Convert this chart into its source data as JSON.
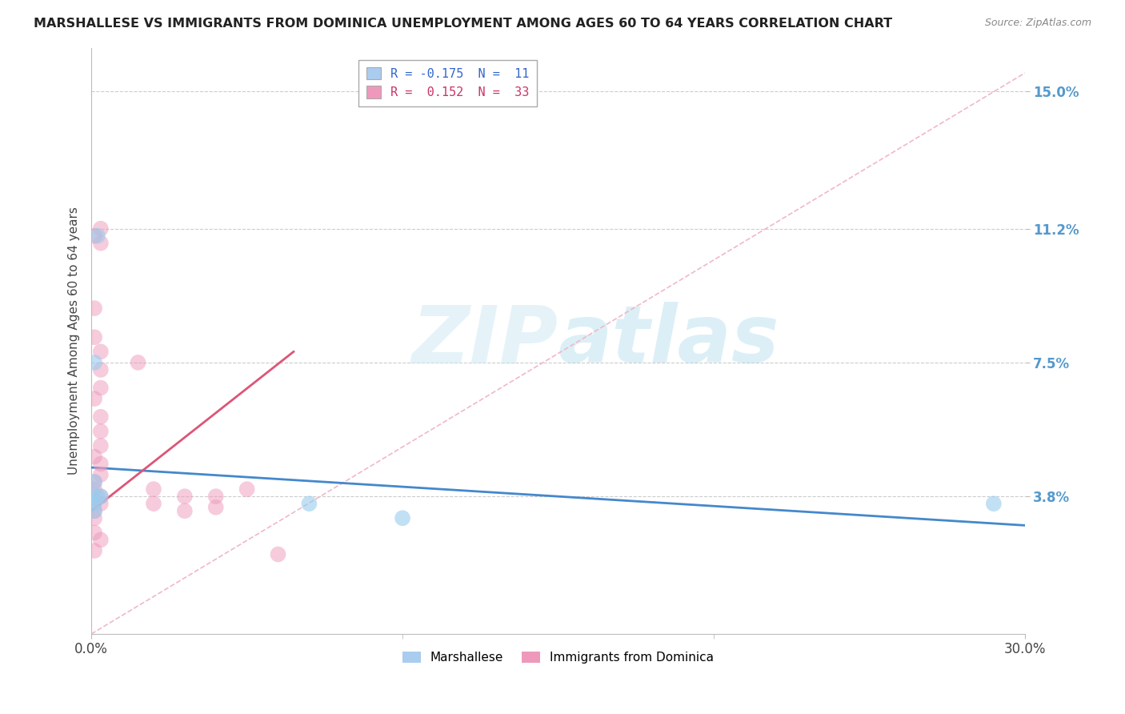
{
  "title": "MARSHALLESE VS IMMIGRANTS FROM DOMINICA UNEMPLOYMENT AMONG AGES 60 TO 64 YEARS CORRELATION CHART",
  "source": "Source: ZipAtlas.com",
  "ylabel": "Unemployment Among Ages 60 to 64 years",
  "ytick_labels": [
    "3.8%",
    "7.5%",
    "11.2%",
    "15.0%"
  ],
  "ytick_values": [
    0.038,
    0.075,
    0.112,
    0.15
  ],
  "xmin": 0.0,
  "xmax": 0.3,
  "ymin": 0.0,
  "ymax": 0.162,
  "marshallese_color": "#99ccee",
  "dominica_color": "#ee99bb",
  "trendline_marshallese_color": "#4488cc",
  "trendline_dominica_color": "#dd5577",
  "dashed_line_color": "#f0b8c8",
  "marshallese_points": [
    [
      0.0,
      0.038
    ],
    [
      0.001,
      0.042
    ],
    [
      0.001,
      0.036
    ],
    [
      0.001,
      0.034
    ],
    [
      0.002,
      0.038
    ],
    [
      0.002,
      0.11
    ],
    [
      0.07,
      0.036
    ],
    [
      0.1,
      0.032
    ],
    [
      0.29,
      0.036
    ],
    [
      0.001,
      0.075
    ],
    [
      0.003,
      0.038
    ]
  ],
  "dominica_points": [
    [
      0.001,
      0.11
    ],
    [
      0.003,
      0.112
    ],
    [
      0.003,
      0.108
    ],
    [
      0.001,
      0.09
    ],
    [
      0.001,
      0.082
    ],
    [
      0.003,
      0.078
    ],
    [
      0.003,
      0.073
    ],
    [
      0.003,
      0.068
    ],
    [
      0.001,
      0.065
    ],
    [
      0.003,
      0.06
    ],
    [
      0.003,
      0.056
    ],
    [
      0.003,
      0.052
    ],
    [
      0.001,
      0.049
    ],
    [
      0.003,
      0.047
    ],
    [
      0.003,
      0.044
    ],
    [
      0.001,
      0.042
    ],
    [
      0.001,
      0.04
    ],
    [
      0.003,
      0.038
    ],
    [
      0.003,
      0.036
    ],
    [
      0.001,
      0.034
    ],
    [
      0.001,
      0.032
    ],
    [
      0.001,
      0.028
    ],
    [
      0.003,
      0.026
    ],
    [
      0.001,
      0.023
    ],
    [
      0.015,
      0.075
    ],
    [
      0.02,
      0.04
    ],
    [
      0.02,
      0.036
    ],
    [
      0.03,
      0.038
    ],
    [
      0.03,
      0.034
    ],
    [
      0.04,
      0.038
    ],
    [
      0.04,
      0.035
    ],
    [
      0.05,
      0.04
    ],
    [
      0.06,
      0.022
    ]
  ],
  "marshallese_trend_x": [
    0.0,
    0.3
  ],
  "marshallese_trend_y": [
    0.046,
    0.03
  ],
  "dominica_trend_x": [
    0.0,
    0.065
  ],
  "dominica_trend_y": [
    0.034,
    0.078
  ],
  "dashed_trend_x": [
    0.0,
    0.3
  ],
  "dashed_trend_y": [
    0.0,
    0.155
  ],
  "legend_top": [
    {
      "label": "R = -0.175  N =  11",
      "color": "#99ccee",
      "text_color": "#3366cc"
    },
    {
      "label": "R =  0.152  N =  33",
      "color": "#ee99bb",
      "text_color": "#cc3366"
    }
  ],
  "legend_bottom": [
    "Marshallese",
    "Immigrants from Dominica"
  ]
}
